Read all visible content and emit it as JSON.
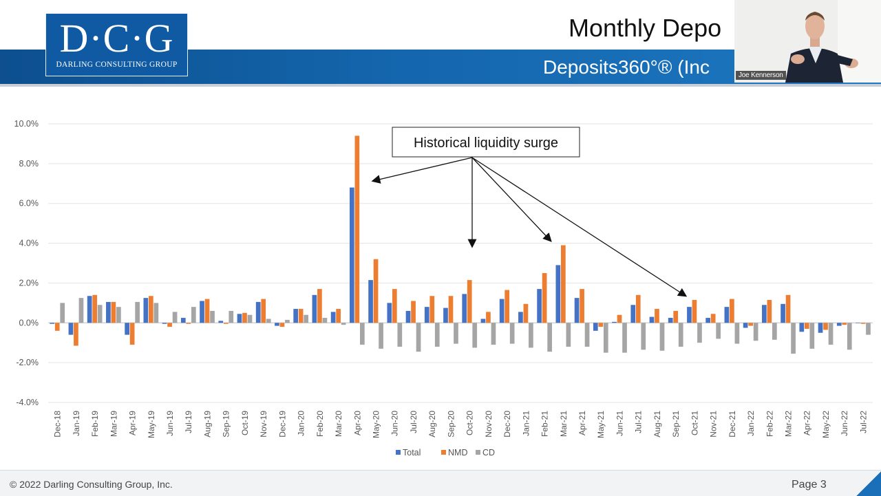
{
  "header": {
    "logo_mark": "D·C·G",
    "logo_subtitle": "DARLING CONSULTING GROUP",
    "title": "Monthly Depo",
    "subtitle": "Deposits360°® (Inc"
  },
  "video": {
    "participant_name": "Joe Kennerson"
  },
  "footer": {
    "copyright": "© 2022 Darling Consulting Group, Inc.",
    "page": "Page 3"
  },
  "colors": {
    "total": "#4472c4",
    "nmd": "#ed7d31",
    "cd": "#a5a5a5",
    "band": "#1466ad"
  },
  "chart_data": {
    "type": "bar",
    "title": "",
    "xlabel": "",
    "ylabel": "",
    "ylim": [
      -4.0,
      10.0
    ],
    "yticks": [
      "10.0%",
      "8.0%",
      "6.0%",
      "4.0%",
      "2.0%",
      "0.0%",
      "-2.0%",
      "-4.0%"
    ],
    "ytick_values": [
      10,
      8,
      6,
      4,
      2,
      0,
      -2,
      -4
    ],
    "grid": true,
    "legend_position": "bottom",
    "categories": [
      "Dec-18",
      "Jan-19",
      "Feb-19",
      "Mar-19",
      "Apr-19",
      "May-19",
      "Jun-19",
      "Jul-19",
      "Aug-19",
      "Sep-19",
      "Oct-19",
      "Nov-19",
      "Dec-19",
      "Jan-20",
      "Feb-20",
      "Mar-20",
      "Apr-20",
      "May-20",
      "Jun-20",
      "Jul-20",
      "Aug-20",
      "Sep-20",
      "Oct-20",
      "Nov-20",
      "Dec-20",
      "Jan-21",
      "Feb-21",
      "Mar-21",
      "Apr-21",
      "May-21",
      "Jun-21",
      "Jul-21",
      "Aug-21",
      "Sep-21",
      "Oct-21",
      "Nov-21",
      "Dec-21",
      "Jan-22",
      "Feb-22",
      "Mar-22",
      "Apr-22",
      "May-22",
      "Jun-22",
      "Jul-22"
    ],
    "series": [
      {
        "name": "Total",
        "values": [
          -0.05,
          -0.6,
          1.35,
          1.05,
          -0.6,
          1.25,
          -0.05,
          0.25,
          1.1,
          0.1,
          0.45,
          1.05,
          -0.15,
          0.7,
          1.4,
          0.55,
          6.8,
          2.15,
          1.0,
          0.6,
          0.8,
          0.75,
          1.45,
          0.2,
          1.2,
          0.55,
          1.7,
          2.9,
          1.25,
          -0.4,
          0.05,
          0.9,
          0.3,
          0.25,
          0.8,
          0.25,
          0.8,
          -0.25,
          0.9,
          0.95,
          -0.45,
          -0.5,
          -0.15,
          -0.02
        ]
      },
      {
        "name": "NMD",
        "values": [
          -0.4,
          -1.15,
          1.4,
          1.05,
          -1.1,
          1.35,
          -0.2,
          -0.05,
          1.2,
          -0.05,
          0.5,
          1.2,
          -0.2,
          0.7,
          1.7,
          0.7,
          9.4,
          3.2,
          1.7,
          1.1,
          1.35,
          1.35,
          2.15,
          0.55,
          1.65,
          0.95,
          2.5,
          3.9,
          1.7,
          -0.2,
          0.4,
          1.4,
          0.7,
          0.6,
          1.15,
          0.45,
          1.2,
          -0.15,
          1.15,
          1.4,
          -0.3,
          -0.35,
          -0.1,
          -0.05
        ]
      },
      {
        "name": "CD",
        "values": [
          1.0,
          1.25,
          0.9,
          0.8,
          1.05,
          1.0,
          0.55,
          0.8,
          0.6,
          0.6,
          0.4,
          0.2,
          0.15,
          0.4,
          0.25,
          -0.1,
          -1.1,
          -1.3,
          -1.2,
          -1.45,
          -1.2,
          -1.05,
          -1.25,
          -1.1,
          -1.05,
          -1.25,
          -1.45,
          -1.2,
          -1.2,
          -1.5,
          -1.5,
          -1.35,
          -1.4,
          -1.2,
          -1.0,
          -0.8,
          -1.05,
          -0.9,
          -0.85,
          -1.55,
          -1.3,
          -1.1,
          -1.35,
          -0.6
        ]
      }
    ],
    "annotations": [
      {
        "text": "Historical liquidity surge",
        "points_to": [
          "Apr-20",
          "Oct-20",
          "Mar-21",
          "Oct-21"
        ]
      }
    ]
  }
}
